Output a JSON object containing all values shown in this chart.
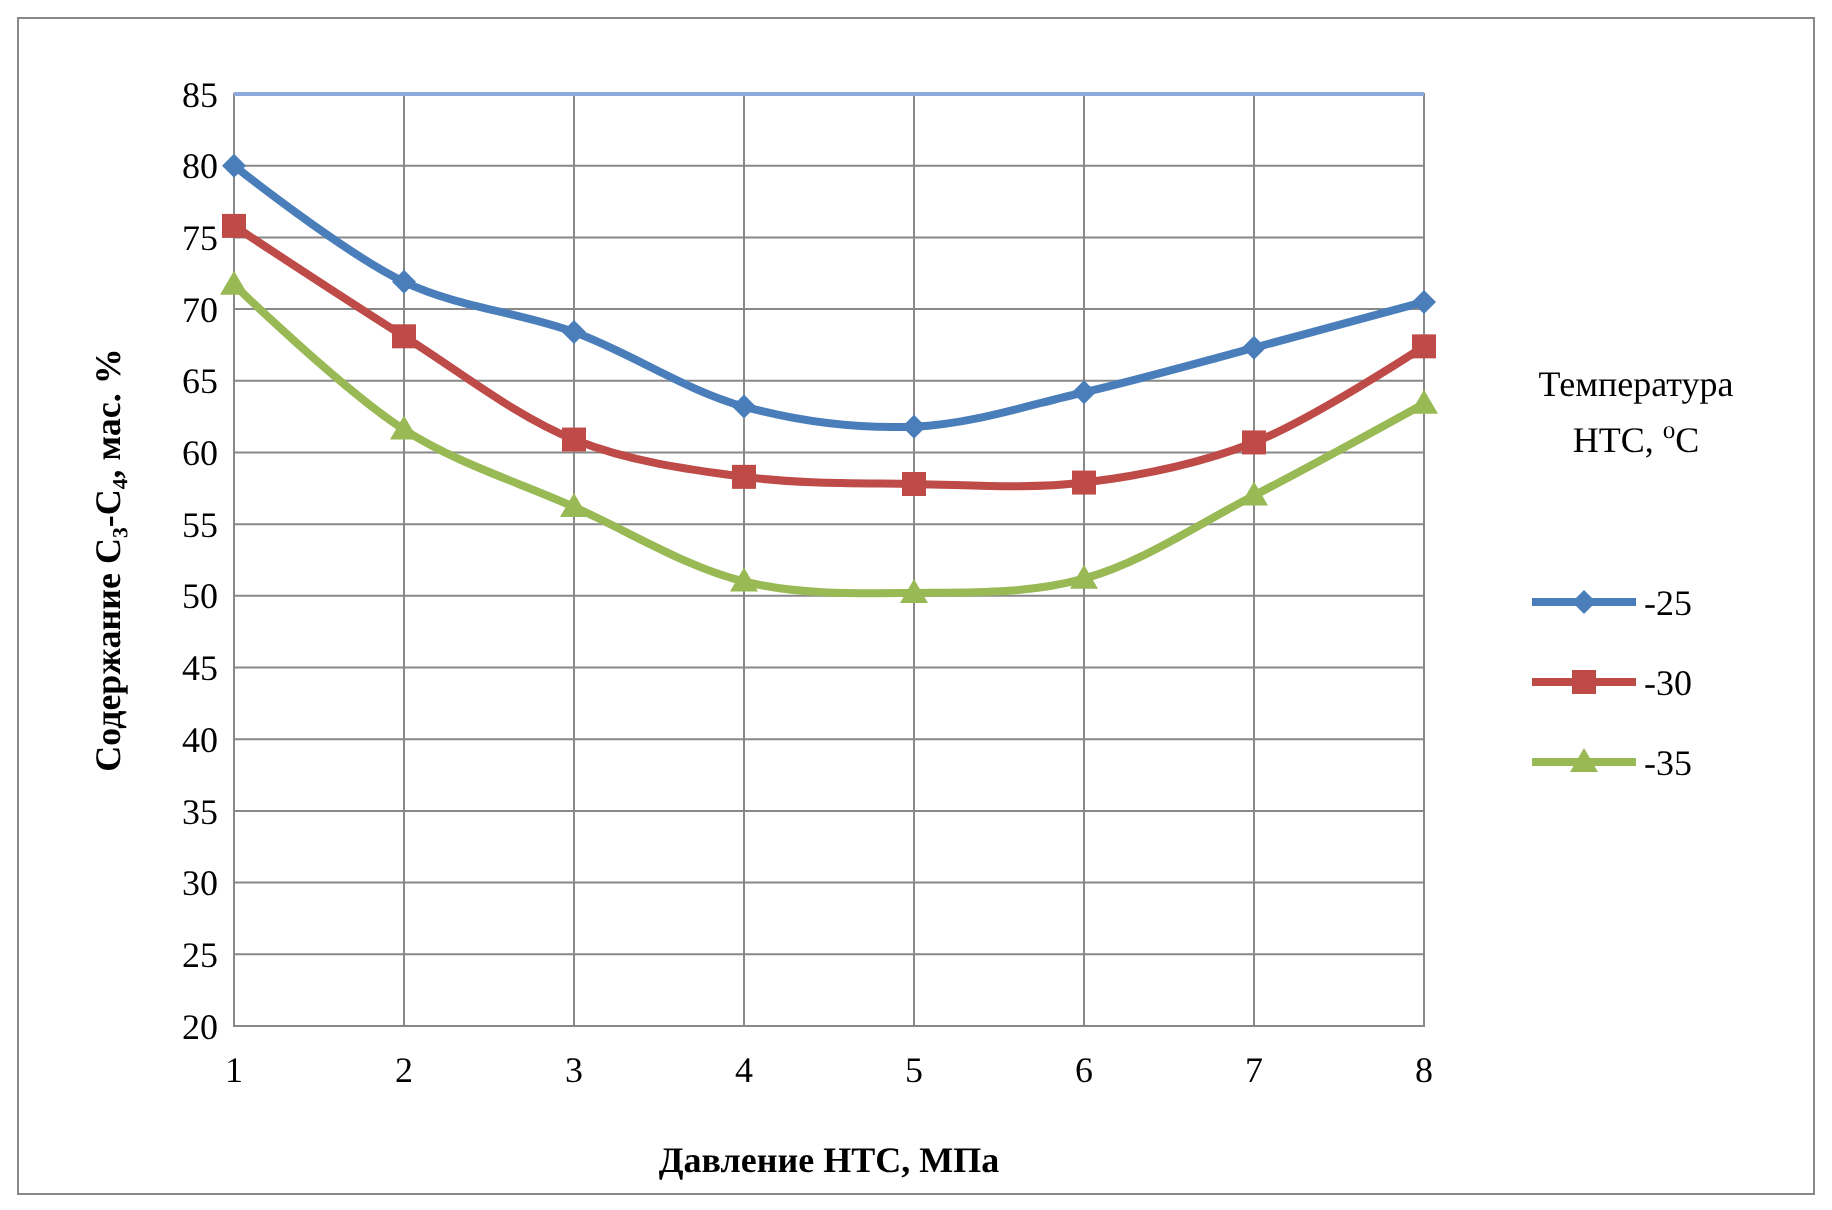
{
  "chart_data": {
    "type": "line",
    "xlabel": "Давление НТС, МПа",
    "ylabel": "Содержание C₃-C₄, мас. %",
    "legend_title": "Температура НТС, $^{o}$C",
    "x": [
      1,
      2,
      3,
      4,
      5,
      6,
      7,
      8
    ],
    "xlim": [
      1,
      8
    ],
    "xticks": [
      1,
      2,
      3,
      4,
      5,
      6,
      7,
      8
    ],
    "ylim": [
      20,
      85
    ],
    "yticks": [
      20,
      25,
      30,
      35,
      40,
      45,
      50,
      55,
      60,
      65,
      70,
      75,
      80,
      85
    ],
    "grid": true,
    "legend": "right",
    "series": [
      {
        "name": "-25",
        "color": "#4a7ebb",
        "marker": "diamond",
        "values": [
          80,
          71.9,
          68.4,
          63.2,
          61.8,
          64.2,
          67.3,
          70.5
        ]
      },
      {
        "name": "-30",
        "color": "#be4b48",
        "marker": "square",
        "values": [
          75.8,
          68.1,
          60.9,
          58.3,
          57.8,
          57.9,
          60.7,
          67.4
        ]
      },
      {
        "name": "-35",
        "color": "#98b954",
        "marker": "triangle",
        "values": [
          71.7,
          61.6,
          56.2,
          51,
          50.2,
          51.2,
          57,
          63.4
        ]
      }
    ]
  }
}
